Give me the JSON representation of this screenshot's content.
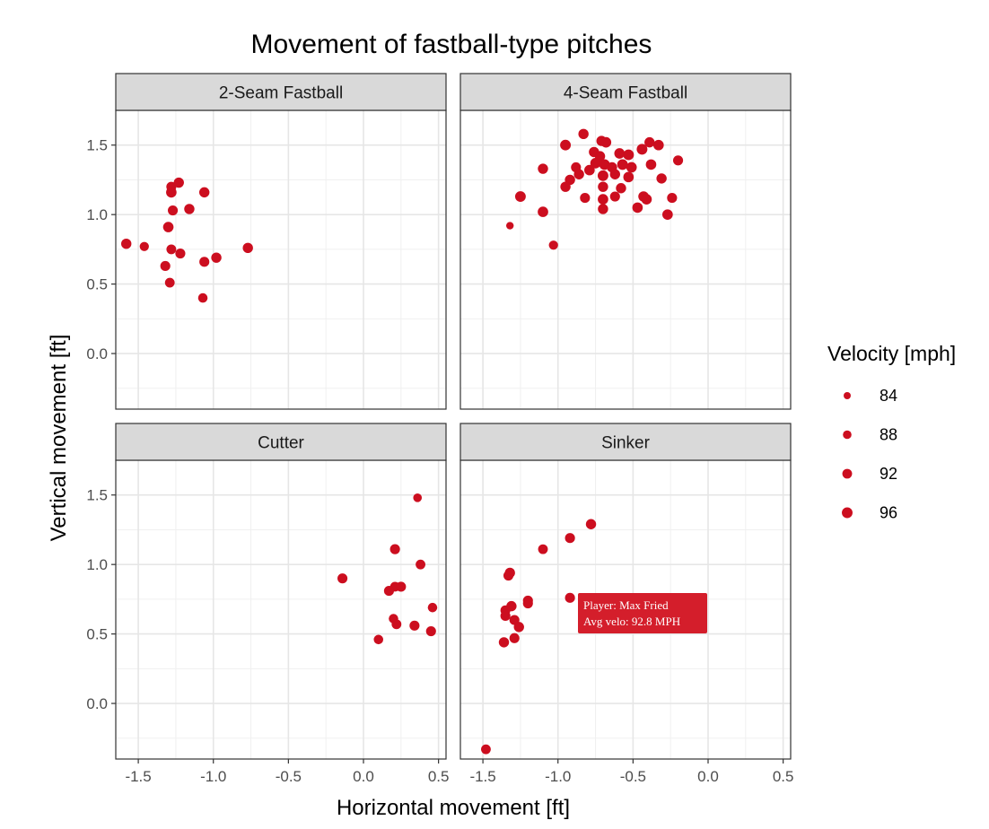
{
  "chart_data": {
    "type": "scatter",
    "title": "Movement of fastball-type pitches",
    "xlabel": "Horizontal movement [ft]",
    "ylabel": "Vertical movement [ft]",
    "xlim": [
      -1.65,
      0.55
    ],
    "ylim": [
      -0.4,
      1.75
    ],
    "xticks": [
      -1.5,
      -1.0,
      -0.5,
      0.0,
      0.5
    ],
    "xtick_labels": [
      "-1.5",
      "-1.0",
      "-0.5",
      "0.0",
      "0.5"
    ],
    "yticks": [
      0.0,
      0.5,
      1.0,
      1.5
    ],
    "ytick_labels": [
      "0.0",
      "0.5",
      "1.0",
      "1.5"
    ],
    "grid": true,
    "point_color": "#cc0e1f",
    "legend": {
      "title": "Velocity [mph]",
      "position": "right",
      "entries": [
        {
          "label": "84",
          "value": 84
        },
        {
          "label": "88",
          "value": 88
        },
        {
          "label": "92",
          "value": 92
        },
        {
          "label": "96",
          "value": 96
        }
      ]
    },
    "panels": [
      {
        "name": "2-Seam Fastball",
        "points": [
          {
            "x": -1.58,
            "y": 0.79,
            "v": 94
          },
          {
            "x": -1.46,
            "y": 0.77,
            "v": 90
          },
          {
            "x": -1.3,
            "y": 0.91,
            "v": 95
          },
          {
            "x": -1.28,
            "y": 1.2,
            "v": 93
          },
          {
            "x": -1.28,
            "y": 1.16,
            "v": 95
          },
          {
            "x": -1.23,
            "y": 1.23,
            "v": 94
          },
          {
            "x": -1.27,
            "y": 1.03,
            "v": 93
          },
          {
            "x": -1.16,
            "y": 1.04,
            "v": 94
          },
          {
            "x": -1.06,
            "y": 1.16,
            "v": 94
          },
          {
            "x": -1.28,
            "y": 0.75,
            "v": 92
          },
          {
            "x": -1.22,
            "y": 0.72,
            "v": 93
          },
          {
            "x": -1.32,
            "y": 0.63,
            "v": 93
          },
          {
            "x": -1.29,
            "y": 0.51,
            "v": 92
          },
          {
            "x": -1.06,
            "y": 0.66,
            "v": 93
          },
          {
            "x": -0.98,
            "y": 0.69,
            "v": 94
          },
          {
            "x": -0.77,
            "y": 0.76,
            "v": 94
          },
          {
            "x": -1.07,
            "y": 0.4,
            "v": 91
          }
        ]
      },
      {
        "name": "4-Seam Fastball",
        "points": [
          {
            "x": -0.83,
            "y": 1.58,
            "v": 94
          },
          {
            "x": -0.95,
            "y": 1.5,
            "v": 96
          },
          {
            "x": -0.71,
            "y": 1.53,
            "v": 94
          },
          {
            "x": -0.68,
            "y": 1.52,
            "v": 95
          },
          {
            "x": -0.39,
            "y": 1.52,
            "v": 94
          },
          {
            "x": -0.33,
            "y": 1.5,
            "v": 95
          },
          {
            "x": -0.76,
            "y": 1.45,
            "v": 94
          },
          {
            "x": -0.59,
            "y": 1.44,
            "v": 95
          },
          {
            "x": -0.44,
            "y": 1.47,
            "v": 96
          },
          {
            "x": -0.72,
            "y": 1.42,
            "v": 94
          },
          {
            "x": -0.53,
            "y": 1.43,
            "v": 96
          },
          {
            "x": -0.2,
            "y": 1.39,
            "v": 93
          },
          {
            "x": -1.1,
            "y": 1.33,
            "v": 94
          },
          {
            "x": -0.88,
            "y": 1.34,
            "v": 93
          },
          {
            "x": -0.79,
            "y": 1.32,
            "v": 95
          },
          {
            "x": -0.75,
            "y": 1.37,
            "v": 95
          },
          {
            "x": -0.69,
            "y": 1.36,
            "v": 96
          },
          {
            "x": -0.64,
            "y": 1.34,
            "v": 94
          },
          {
            "x": -0.57,
            "y": 1.36,
            "v": 96
          },
          {
            "x": -0.51,
            "y": 1.34,
            "v": 95
          },
          {
            "x": -0.38,
            "y": 1.36,
            "v": 95
          },
          {
            "x": -0.92,
            "y": 1.25,
            "v": 94
          },
          {
            "x": -0.86,
            "y": 1.29,
            "v": 94
          },
          {
            "x": -0.7,
            "y": 1.28,
            "v": 96
          },
          {
            "x": -0.62,
            "y": 1.29,
            "v": 94
          },
          {
            "x": -0.53,
            "y": 1.27,
            "v": 95
          },
          {
            "x": -0.31,
            "y": 1.26,
            "v": 94
          },
          {
            "x": -0.95,
            "y": 1.2,
            "v": 94
          },
          {
            "x": -0.7,
            "y": 1.2,
            "v": 94
          },
          {
            "x": -0.58,
            "y": 1.19,
            "v": 94
          },
          {
            "x": -1.25,
            "y": 1.13,
            "v": 96
          },
          {
            "x": -0.82,
            "y": 1.12,
            "v": 93
          },
          {
            "x": -0.7,
            "y": 1.11,
            "v": 95
          },
          {
            "x": -0.62,
            "y": 1.13,
            "v": 93
          },
          {
            "x": -0.43,
            "y": 1.13,
            "v": 95
          },
          {
            "x": -0.41,
            "y": 1.11,
            "v": 95
          },
          {
            "x": -0.24,
            "y": 1.12,
            "v": 93
          },
          {
            "x": -1.1,
            "y": 1.02,
            "v": 95
          },
          {
            "x": -0.7,
            "y": 1.04,
            "v": 94
          },
          {
            "x": -0.47,
            "y": 1.05,
            "v": 95
          },
          {
            "x": -0.27,
            "y": 1.0,
            "v": 95
          },
          {
            "x": -1.32,
            "y": 0.92,
            "v": 85
          },
          {
            "x": -1.03,
            "y": 0.78,
            "v": 90
          }
        ]
      },
      {
        "name": "Cutter",
        "points": [
          {
            "x": 0.36,
            "y": 1.48,
            "v": 88
          },
          {
            "x": 0.21,
            "y": 1.11,
            "v": 93
          },
          {
            "x": 0.38,
            "y": 1.0,
            "v": 92
          },
          {
            "x": -0.14,
            "y": 0.9,
            "v": 93
          },
          {
            "x": 0.21,
            "y": 0.84,
            "v": 92
          },
          {
            "x": 0.25,
            "y": 0.84,
            "v": 93
          },
          {
            "x": 0.17,
            "y": 0.81,
            "v": 93
          },
          {
            "x": 0.46,
            "y": 0.69,
            "v": 91
          },
          {
            "x": 0.2,
            "y": 0.61,
            "v": 91
          },
          {
            "x": 0.22,
            "y": 0.57,
            "v": 92
          },
          {
            "x": 0.34,
            "y": 0.56,
            "v": 93
          },
          {
            "x": 0.45,
            "y": 0.52,
            "v": 93
          },
          {
            "x": 0.1,
            "y": 0.46,
            "v": 91
          }
        ]
      },
      {
        "name": "Sinker",
        "points": [
          {
            "x": -0.78,
            "y": 1.29,
            "v": 94
          },
          {
            "x": -0.92,
            "y": 1.19,
            "v": 93
          },
          {
            "x": -1.1,
            "y": 1.11,
            "v": 92
          },
          {
            "x": -1.32,
            "y": 0.94,
            "v": 94
          },
          {
            "x": -1.33,
            "y": 0.92,
            "v": 93
          },
          {
            "x": -0.92,
            "y": 0.76,
            "v": 93
          },
          {
            "x": -1.2,
            "y": 0.74,
            "v": 93
          },
          {
            "x": -1.2,
            "y": 0.72,
            "v": 93
          },
          {
            "x": -1.31,
            "y": 0.7,
            "v": 94
          },
          {
            "x": -1.35,
            "y": 0.67,
            "v": 93
          },
          {
            "x": -1.35,
            "y": 0.63,
            "v": 93
          },
          {
            "x": -1.29,
            "y": 0.6,
            "v": 93
          },
          {
            "x": -1.26,
            "y": 0.55,
            "v": 94
          },
          {
            "x": -1.29,
            "y": 0.47,
            "v": 93
          },
          {
            "x": -1.36,
            "y": 0.44,
            "v": 94
          },
          {
            "x": -1.48,
            "y": -0.33,
            "v": 92
          }
        ]
      }
    ],
    "tooltip": {
      "line1": "Player: Max Fried",
      "line2": "Avg velo: 92.8 MPH"
    }
  }
}
